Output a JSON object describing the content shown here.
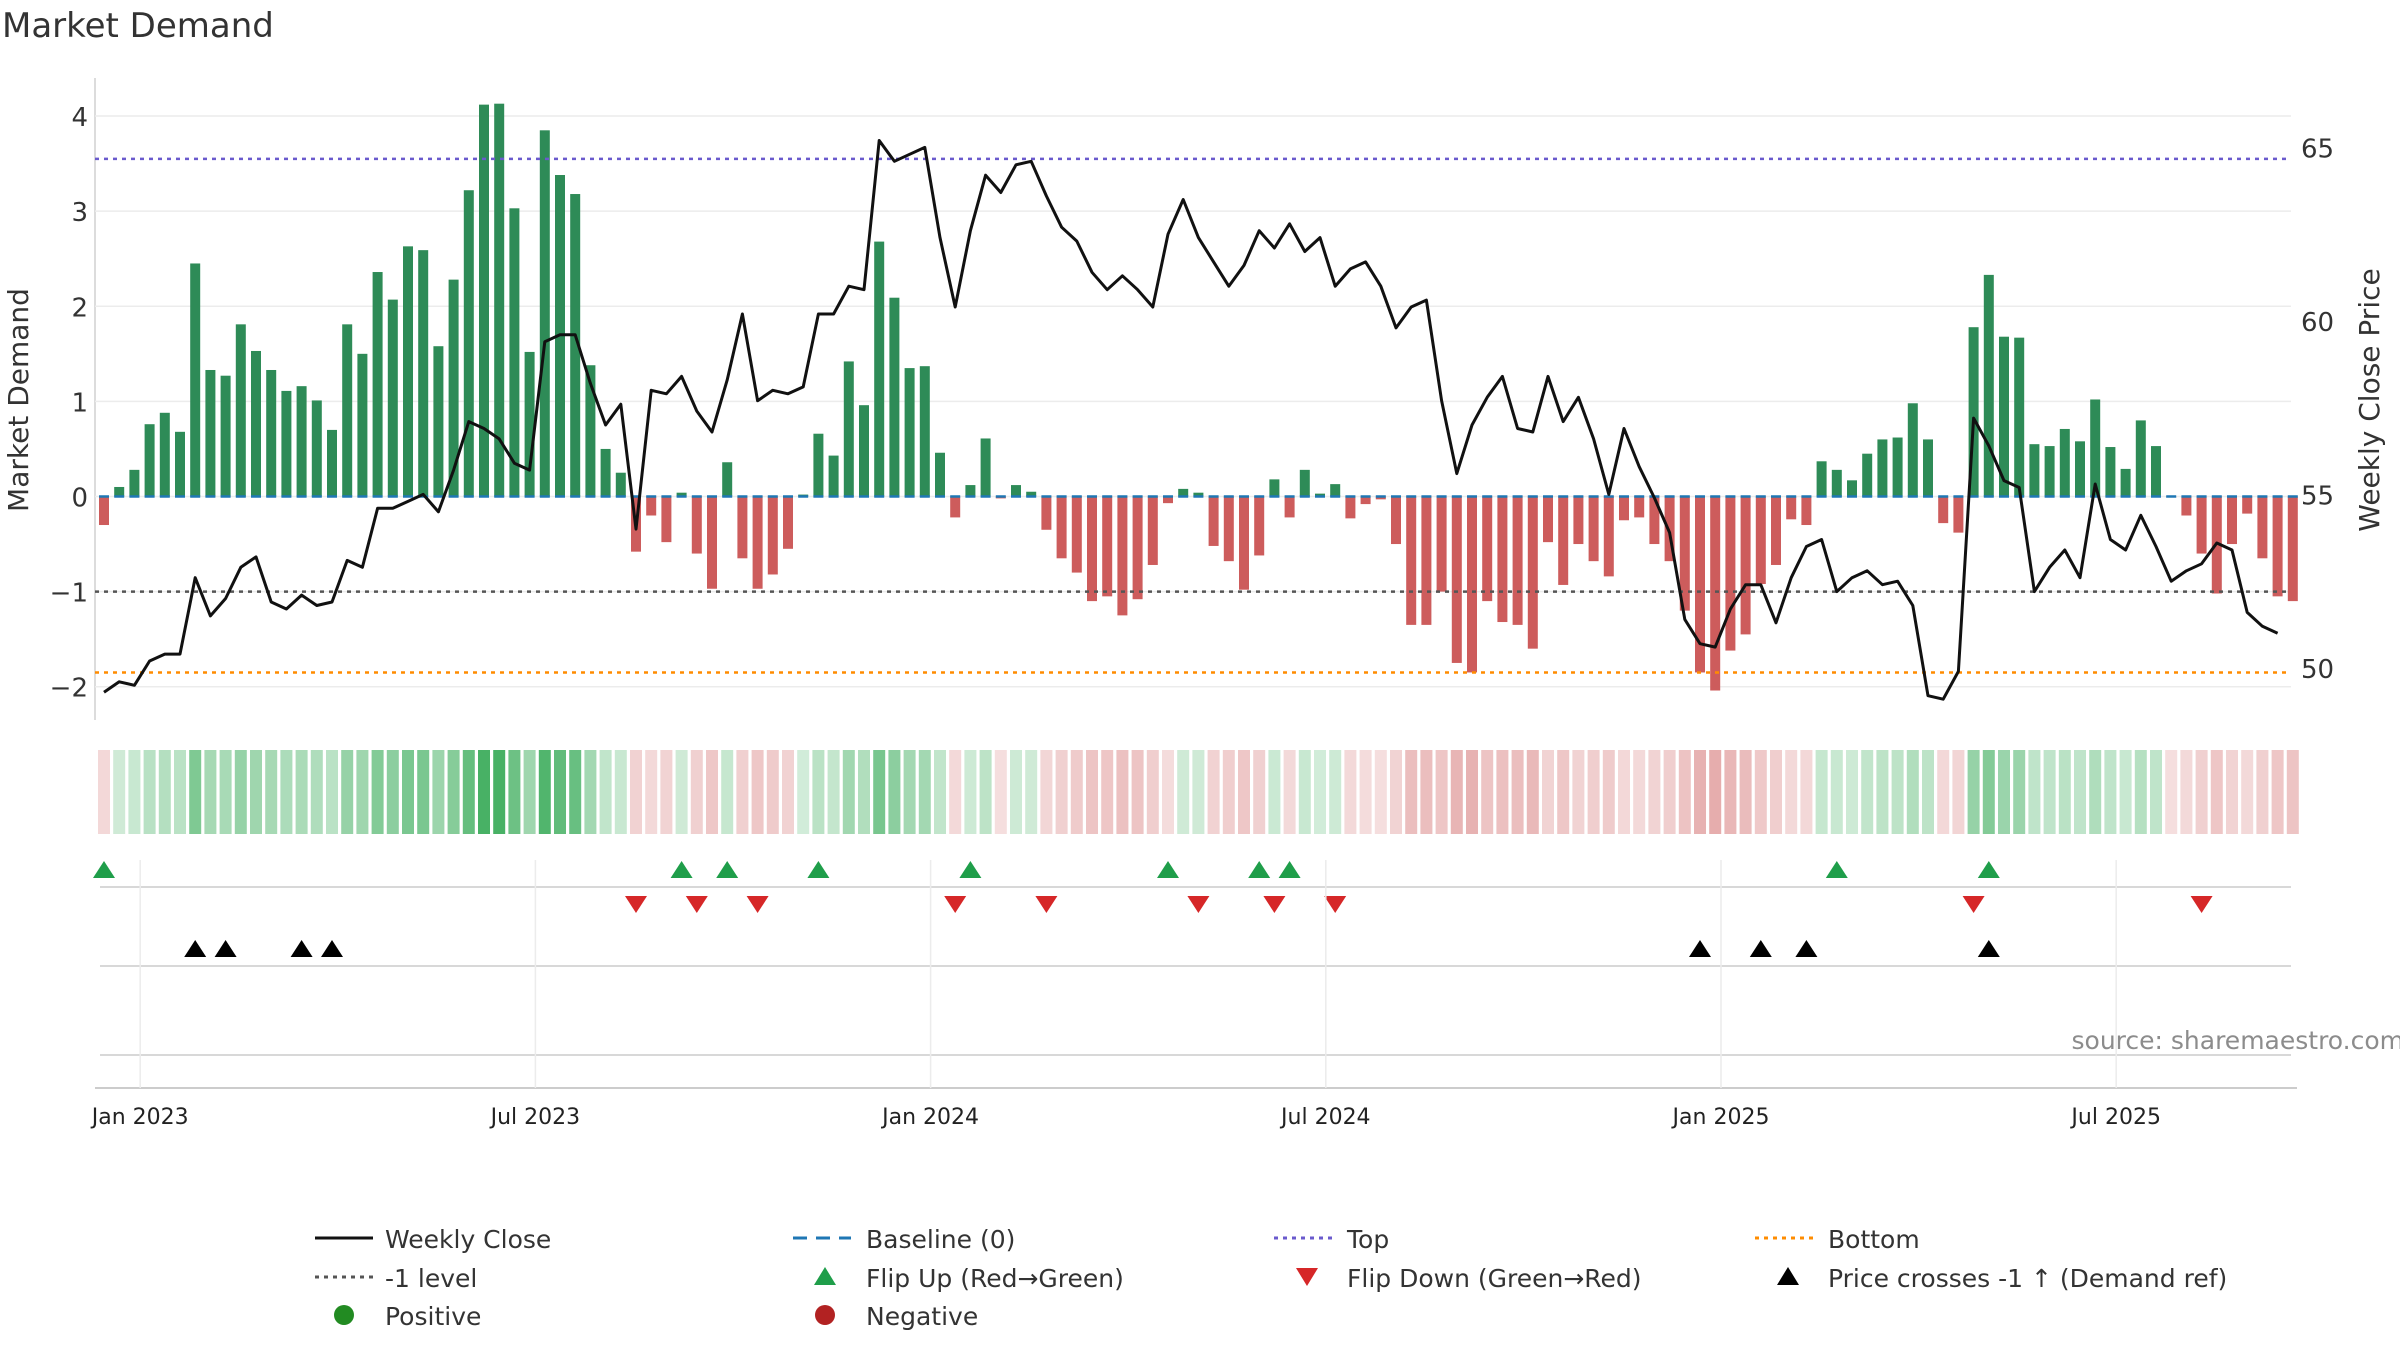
{
  "chart_data": {
    "type": "bar",
    "title": "Market Demand",
    "ylabel_left": "Market Demand",
    "ylabel_right": "Weekly Close Price",
    "ylim_left": [
      -2.35,
      4.4
    ],
    "ylim_right": [
      48.5,
      67.0
    ],
    "yticks_left": [
      -2,
      -1,
      0,
      1,
      2,
      3,
      4
    ],
    "ytick_labels_left": [
      "−2",
      "−1",
      "0",
      "1",
      "2",
      "3",
      "4"
    ],
    "yticks_right": [
      50,
      55,
      60,
      65
    ],
    "ytick_labels_right": [
      "50",
      "55",
      "60",
      "65"
    ],
    "x_tick_weeks": [
      1,
      27,
      53,
      79,
      105,
      131
    ],
    "x_tick_labels": [
      "Jan 2023",
      "Jul 2023",
      "Jan 2024",
      "Jul 2024",
      "Jan 2025",
      "Jul 2025"
    ],
    "week_count": 145,
    "reference_lines": {
      "top": 3.55,
      "bottom": -1.85,
      "minus_one": -1,
      "baseline": 0
    },
    "demand": [
      -0.3,
      0.1,
      0.28,
      0.76,
      0.88,
      0.68,
      2.45,
      1.33,
      1.27,
      1.81,
      1.53,
      1.33,
      1.11,
      1.16,
      1.01,
      0.7,
      1.81,
      1.5,
      2.36,
      2.07,
      2.63,
      2.59,
      1.58,
      2.28,
      3.22,
      4.12,
      4.13,
      3.03,
      1.52,
      3.85,
      3.38,
      3.18,
      1.38,
      0.5,
      0.25,
      -0.58,
      -0.2,
      -0.48,
      0.04,
      -0.6,
      -0.97,
      0.36,
      -0.65,
      -0.97,
      -0.82,
      -0.55,
      0.02,
      0.66,
      0.43,
      1.42,
      0.96,
      2.68,
      2.09,
      1.35,
      1.37,
      0.46,
      -0.22,
      0.12,
      0.61,
      -0.02,
      0.12,
      0.05,
      -0.35,
      -0.65,
      -0.8,
      -1.1,
      -1.05,
      -1.25,
      -1.08,
      -0.72,
      -0.07,
      0.08,
      0.04,
      -0.52,
      -0.68,
      -0.98,
      -0.62,
      0.18,
      -0.22,
      0.28,
      0.03,
      0.13,
      -0.23,
      -0.08,
      -0.03,
      -0.5,
      -1.35,
      -1.35,
      -1.0,
      -1.75,
      -1.85,
      -1.1,
      -1.32,
      -1.35,
      -1.6,
      -0.48,
      -0.93,
      -0.5,
      -0.68,
      -0.84,
      -0.25,
      -0.22,
      -0.5,
      -0.68,
      -1.2,
      -1.85,
      -2.04,
      -1.62,
      -1.45,
      -0.92,
      -0.72,
      -0.24,
      -0.3,
      0.37,
      0.28,
      0.17,
      0.45,
      0.6,
      0.62,
      0.98,
      0.6,
      -0.28,
      -0.38,
      1.78,
      2.33,
      1.68,
      1.67,
      0.55,
      0.53,
      0.71,
      0.58,
      1.02,
      0.52,
      0.29,
      0.8,
      0.53,
      -0.01,
      -0.2,
      -0.6,
      -1.02,
      -0.5,
      -0.18,
      -0.65,
      -1.05,
      -1.1
    ],
    "close": [
      49.3,
      49.6,
      49.5,
      50.2,
      50.4,
      50.4,
      52.6,
      51.5,
      52.0,
      52.9,
      53.2,
      51.9,
      51.7,
      52.1,
      51.8,
      51.9,
      53.1,
      52.9,
      54.6,
      54.6,
      54.8,
      55.0,
      54.5,
      55.7,
      57.1,
      56.9,
      56.6,
      55.9,
      55.7,
      59.4,
      59.6,
      59.6,
      58.2,
      57.0,
      57.6,
      54.0,
      58.0,
      57.9,
      58.4,
      57.4,
      56.8,
      58.3,
      60.2,
      57.7,
      58.0,
      57.9,
      58.1,
      60.2,
      60.2,
      61.0,
      60.9,
      65.2,
      64.6,
      64.8,
      65.0,
      62.4,
      60.4,
      62.6,
      64.2,
      63.7,
      64.5,
      64.6,
      63.6,
      62.7,
      62.3,
      61.4,
      60.9,
      61.3,
      60.9,
      60.4,
      62.5,
      63.5,
      62.4,
      61.7,
      61.0,
      61.6,
      62.6,
      62.1,
      62.8,
      62.0,
      62.4,
      61.0,
      61.5,
      61.7,
      61.0,
      59.8,
      60.4,
      60.6,
      57.7,
      55.6,
      57.0,
      57.8,
      58.4,
      56.9,
      56.8,
      58.4,
      57.1,
      57.8,
      56.6,
      55.0,
      56.9,
      55.8,
      54.9,
      53.9,
      51.4,
      50.7,
      50.6,
      51.7,
      52.4,
      52.4,
      51.3,
      52.6,
      53.5,
      53.7,
      52.2,
      52.6,
      52.8,
      52.4,
      52.5,
      51.8,
      49.2,
      49.1,
      49.9,
      57.2,
      56.4,
      55.4,
      55.2,
      52.2,
      52.9,
      53.4,
      52.6,
      55.3,
      53.7,
      53.4,
      54.4,
      53.5,
      52.5,
      52.8,
      53.0,
      53.6,
      53.4,
      51.6,
      51.2,
      51.0
    ],
    "flip_up_weeks": [
      0,
      38,
      41,
      47,
      57,
      70,
      76,
      78,
      114,
      124
    ],
    "flip_down_weeks": [
      35,
      39,
      43,
      56,
      62,
      72,
      77,
      81,
      123,
      138
    ],
    "price_cross_weeks": [
      6,
      8,
      13,
      15,
      105,
      109,
      112,
      124
    ],
    "legend": {
      "weekly_close": "Weekly Close",
      "baseline": "Baseline (0)",
      "top": "Top",
      "bottom": "Bottom",
      "minus_one": "-1 level",
      "flip_up": "Flip Up (Red→Green)",
      "flip_down": "Flip Down (Green→Red)",
      "price_cross": "Price crosses -1 ↑ (Demand ref)",
      "positive": "Positive",
      "negative": "Negative"
    },
    "source": "source: sharemaestro.com"
  },
  "colors": {
    "positive_bar": "#2e8b57",
    "negative_bar": "#cd5c5c",
    "close_line": "#111111",
    "baseline": "#1f77b4",
    "top_line": "#6a5acd",
    "bottom_line": "#ff8c00",
    "minus_one_line": "#555555",
    "flip_up": "#1f9e4a",
    "flip_down": "#d62728",
    "price_cross": "#000000",
    "positive_dot": "#228b22",
    "negative_dot": "#b22222",
    "heat_positive": "#1a9e3f",
    "heat_negative": "#cd5c5c"
  }
}
